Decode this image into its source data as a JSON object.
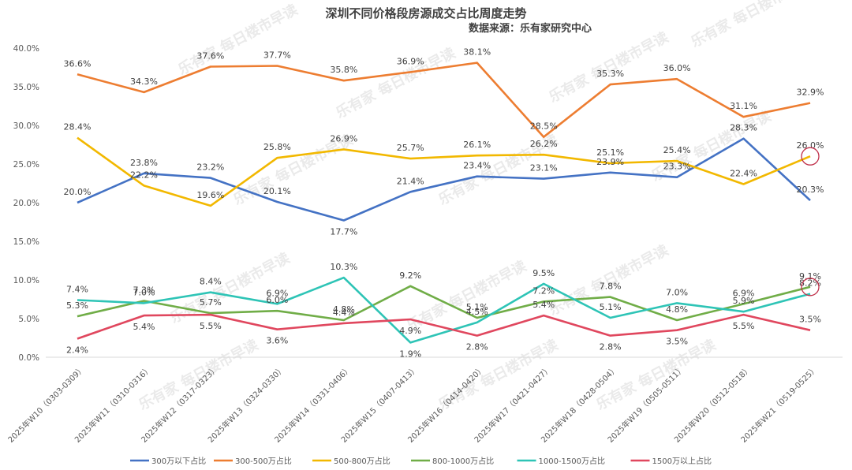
{
  "chart_data": {
    "type": "line",
    "title": "深圳不同价格段房源成交占比周度走势",
    "subtitle": "数据来源：乐有家研究中心",
    "xlabel": "",
    "ylabel": "",
    "ylim": [
      0,
      40
    ],
    "yticks": [
      "0.0%",
      "5.0%",
      "10.0%",
      "15.0%",
      "20.0%",
      "25.0%",
      "30.0%",
      "35.0%",
      "40.0%"
    ],
    "ytick_values": [
      0,
      5,
      10,
      15,
      20,
      25,
      30,
      35,
      40
    ],
    "grid": false,
    "legend_position": "bottom",
    "categories": [
      "2025年W10（0303-0309）",
      "2025年W11（0310-0316）",
      "2025年W12（0317-0323）",
      "2025年W13（0324-0330）",
      "2025年W14（0331-0406）",
      "2025年W15（0407-0413）",
      "2025年W16（0414-0420）",
      "2025年W17（0421-0427）",
      "2025年W18（0428-0504）",
      "2025年W19（0505-0511）",
      "2025年W20（0512-0518）",
      "2025年W21（0519-0525）"
    ],
    "series": [
      {
        "name": "300万以下占比",
        "color": "#4472C4",
        "values": [
          20.0,
          23.8,
          23.2,
          20.1,
          17.7,
          21.4,
          23.4,
          23.1,
          23.9,
          23.3,
          28.3,
          20.3
        ]
      },
      {
        "name": "300-500万占比",
        "color": "#ED7D31",
        "values": [
          36.6,
          34.3,
          37.6,
          37.7,
          35.8,
          36.9,
          38.1,
          28.5,
          35.3,
          36.0,
          31.1,
          32.9
        ]
      },
      {
        "name": "500-800万占比",
        "color": "#F2B800",
        "values": [
          28.4,
          22.2,
          19.6,
          25.8,
          26.9,
          25.7,
          26.1,
          26.2,
          25.1,
          25.4,
          22.4,
          26.0
        ]
      },
      {
        "name": "800-1000万占比",
        "color": "#70AD47",
        "values": [
          5.3,
          7.3,
          5.7,
          6.0,
          4.8,
          9.2,
          5.1,
          7.2,
          7.8,
          4.8,
          6.9,
          9.1
        ]
      },
      {
        "name": "1000-1500万占比",
        "color": "#2EC4B6",
        "values": [
          7.4,
          7.0,
          8.4,
          6.9,
          10.3,
          1.9,
          4.5,
          9.5,
          5.1,
          7.0,
          5.9,
          8.2
        ]
      },
      {
        "name": "1500万以上占比",
        "color": "#E0475E",
        "values": [
          2.4,
          5.4,
          5.5,
          3.6,
          4.4,
          4.9,
          2.8,
          5.4,
          2.8,
          3.5,
          5.5,
          3.5
        ]
      }
    ],
    "annotations": [
      {
        "type": "circle",
        "series": "500-800万占比",
        "category_index": 11,
        "color": "#C0304A"
      },
      {
        "type": "circle",
        "series": "800-1000万占比",
        "category_index": 11,
        "color": "#C0304A"
      }
    ],
    "watermark": [
      "乐有家",
      "每日楼市早读"
    ]
  }
}
